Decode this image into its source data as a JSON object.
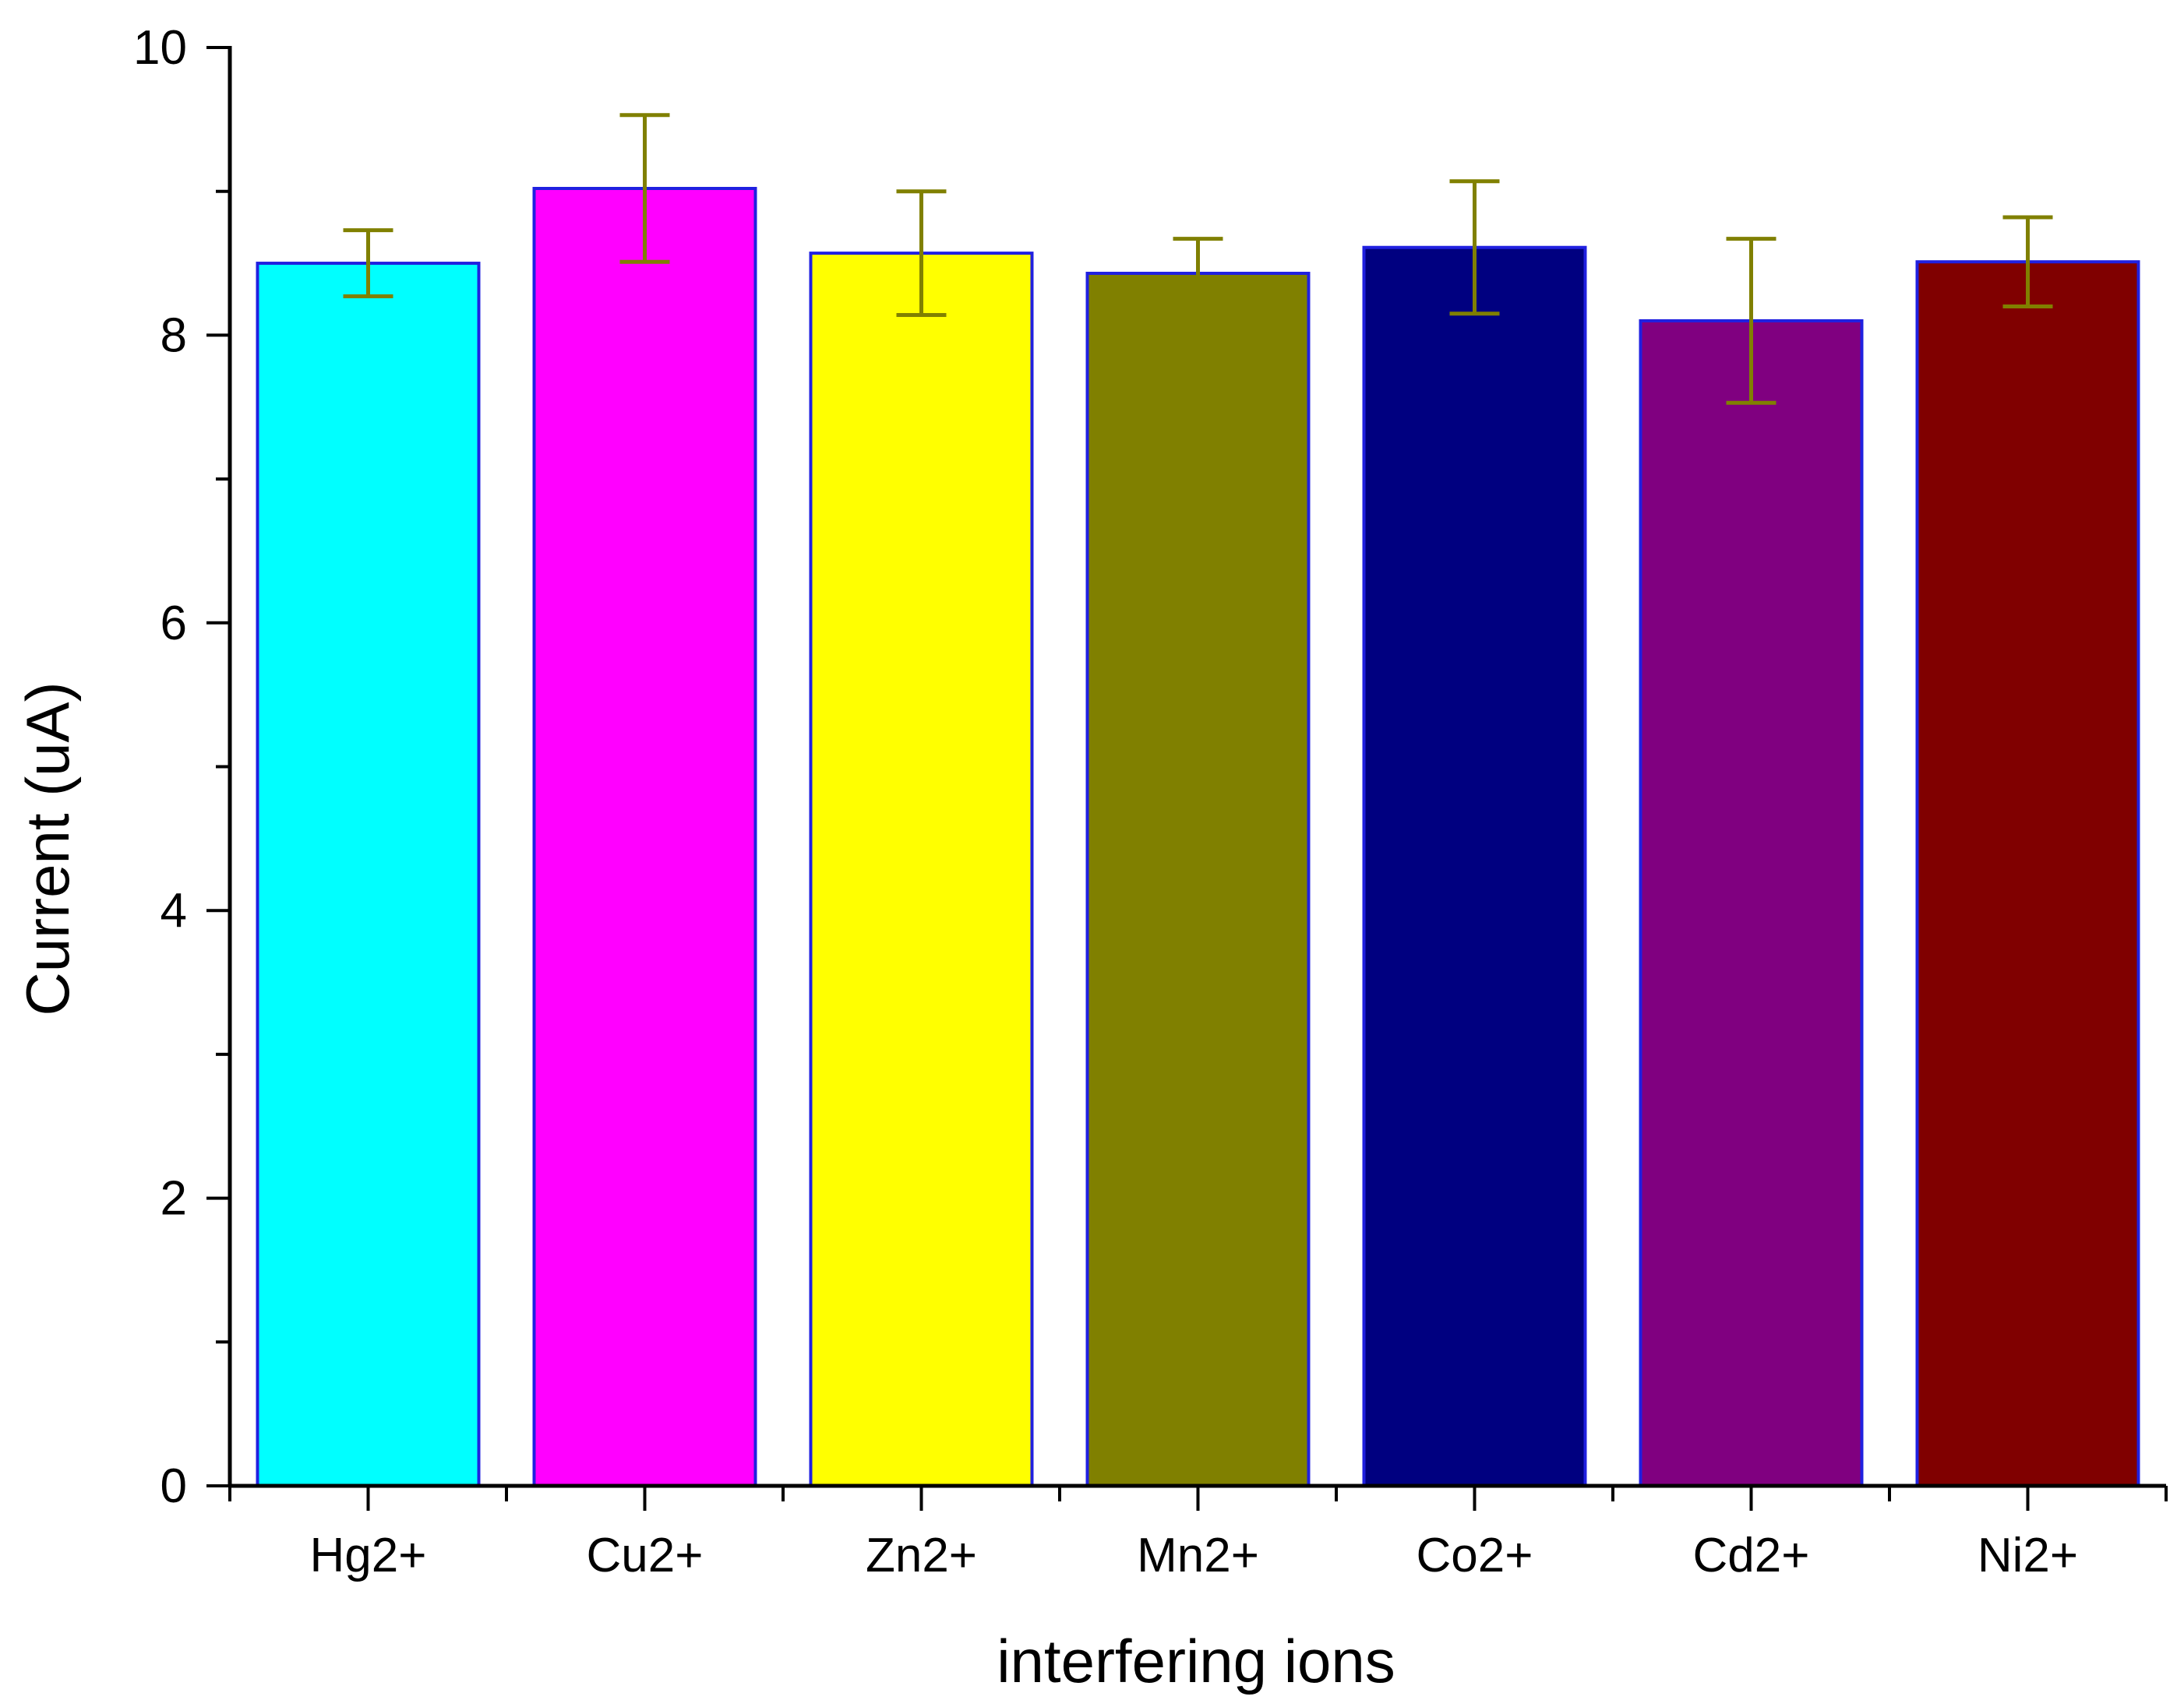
{
  "chart_data": {
    "type": "bar",
    "title": "",
    "xlabel": "interfering ions",
    "ylabel": "Current (uA)",
    "categories": [
      "Hg2+",
      "Cu2+",
      "Zn2+",
      "Mn2+",
      "Co2+",
      "Cd2+",
      "Ni2+"
    ],
    "values": [
      8.5,
      9.02,
      8.57,
      8.43,
      8.61,
      8.1,
      8.51
    ],
    "errors": [
      0.23,
      0.51,
      0.43,
      0.24,
      0.46,
      0.57,
      0.31
    ],
    "bar_colors": [
      "#00ffff",
      "#ff00ff",
      "#ffff00",
      "#808000",
      "#000080",
      "#800080",
      "#800000"
    ],
    "bar_edge_color": "#2020e0",
    "error_bar_color": "#808000",
    "ylim": [
      0,
      10
    ],
    "yticks": [
      0,
      2,
      4,
      6,
      8,
      10
    ],
    "grid": false,
    "legend": "none"
  }
}
